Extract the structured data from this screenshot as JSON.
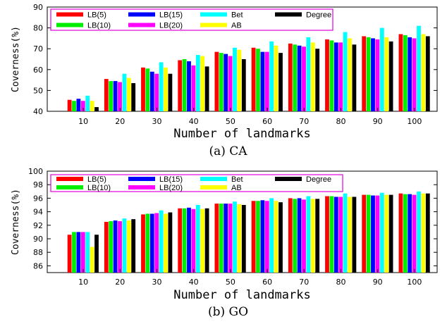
{
  "captions": [
    "(a) CA",
    "(b) GO"
  ],
  "legend": [
    "LB(5)",
    "LB(10)",
    "LB(15)",
    "LB(20)",
    "Bet",
    "AB",
    "Degree"
  ],
  "series_colors": [
    "#ff0000",
    "#00ee00",
    "#0000ff",
    "#ff00ff",
    "#00ffff",
    "#ffff00",
    "#000000"
  ],
  "chart_data": [
    {
      "type": "bar",
      "title": "",
      "xlabel": "Number of landmarks",
      "ylabel": "Coverness(%)",
      "ylim": [
        40,
        90
      ],
      "yticks": [
        40,
        50,
        60,
        70,
        80,
        90
      ],
      "grid": false,
      "legend_position": "top-left",
      "categories": [
        "10",
        "20",
        "30",
        "40",
        "50",
        "60",
        "70",
        "80",
        "90",
        "100"
      ],
      "series": [
        {
          "name": "LB(5)",
          "values": [
            45.5,
            55.5,
            61.0,
            64.5,
            68.5,
            70.5,
            72.5,
            74.5,
            76.0,
            77.0
          ]
        },
        {
          "name": "LB(10)",
          "values": [
            45.0,
            54.5,
            60.5,
            65.0,
            68.0,
            70.0,
            72.0,
            74.0,
            75.5,
            76.5
          ]
        },
        {
          "name": "LB(15)",
          "values": [
            46.0,
            54.5,
            59.0,
            64.0,
            67.5,
            68.5,
            71.5,
            73.0,
            75.0,
            75.5
          ]
        },
        {
          "name": "LB(20)",
          "values": [
            45.0,
            54.0,
            58.0,
            62.0,
            66.5,
            68.5,
            71.0,
            73.0,
            74.5,
            75.0
          ]
        },
        {
          "name": "Bet",
          "values": [
            47.5,
            58.0,
            63.5,
            67.0,
            70.5,
            73.5,
            75.5,
            78.0,
            80.0,
            81.0
          ]
        },
        {
          "name": "AB",
          "values": [
            45.0,
            56.0,
            61.0,
            66.5,
            69.5,
            71.5,
            73.0,
            75.0,
            75.5,
            77.0
          ]
        },
        {
          "name": "Degree",
          "values": [
            42.0,
            53.5,
            58.0,
            61.5,
            65.0,
            68.0,
            70.0,
            72.0,
            73.5,
            76.0
          ]
        }
      ]
    },
    {
      "type": "bar",
      "title": "",
      "xlabel": "Number of landmarks",
      "ylabel": "Coverness(%)",
      "ylim": [
        85,
        100
      ],
      "yticks": [
        86,
        88,
        90,
        92,
        94,
        96,
        98,
        100
      ],
      "grid": false,
      "legend_position": "top-left",
      "categories": [
        "10",
        "20",
        "30",
        "40",
        "50",
        "60",
        "70",
        "80",
        "90",
        "100"
      ],
      "series": [
        {
          "name": "LB(5)",
          "values": [
            90.6,
            92.5,
            93.6,
            94.5,
            95.2,
            95.6,
            96.0,
            96.3,
            96.5,
            96.7
          ]
        },
        {
          "name": "LB(10)",
          "values": [
            91.0,
            92.6,
            93.7,
            94.5,
            95.2,
            95.6,
            95.9,
            96.3,
            96.5,
            96.6
          ]
        },
        {
          "name": "LB(15)",
          "values": [
            91.0,
            92.7,
            93.7,
            94.6,
            95.2,
            95.7,
            96.0,
            96.2,
            96.4,
            96.6
          ]
        },
        {
          "name": "LB(20)",
          "values": [
            91.0,
            92.6,
            93.8,
            94.4,
            95.2,
            95.6,
            95.8,
            96.2,
            96.4,
            96.5
          ]
        },
        {
          "name": "Bet",
          "values": [
            91.0,
            93.0,
            94.2,
            95.0,
            95.5,
            96.0,
            96.3,
            96.7,
            96.8,
            97.0
          ]
        },
        {
          "name": "AB",
          "values": [
            88.8,
            92.7,
            93.7,
            94.4,
            95.1,
            95.6,
            95.9,
            96.2,
            96.5,
            96.7
          ]
        },
        {
          "name": "Degree",
          "values": [
            90.6,
            92.9,
            93.9,
            94.5,
            95.0,
            95.4,
            95.9,
            96.2,
            96.5,
            96.7
          ]
        }
      ]
    }
  ]
}
